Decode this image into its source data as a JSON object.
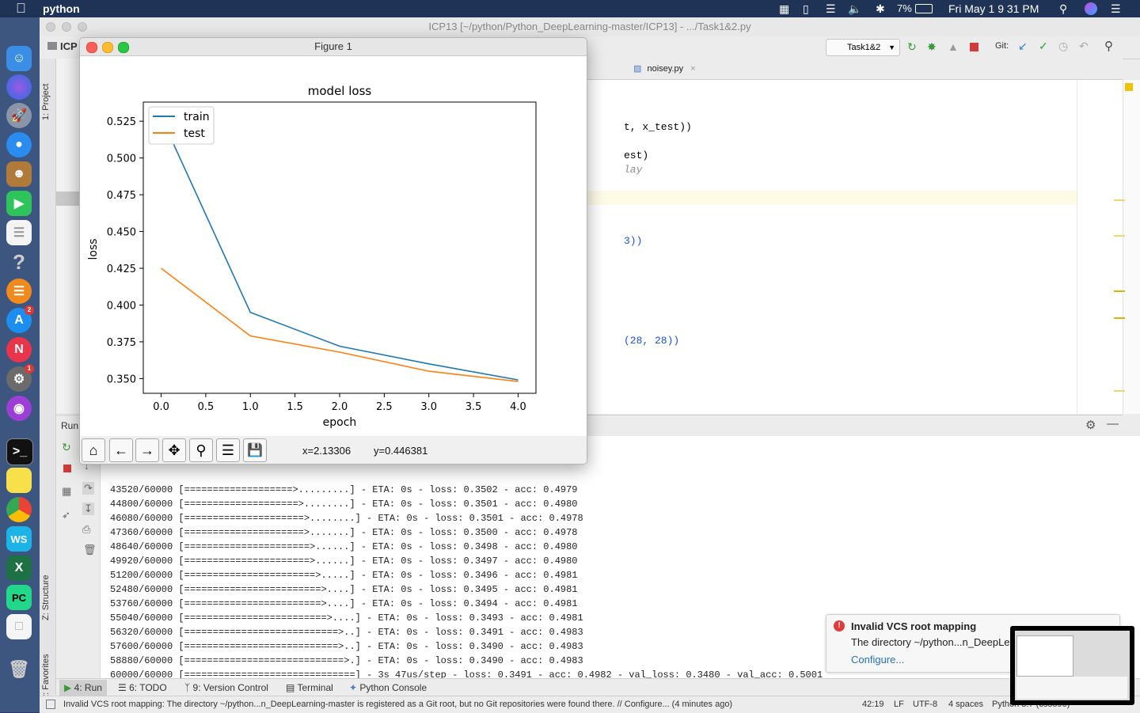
{
  "menubar": {
    "app_name": "python",
    "battery": "7%",
    "datetime": "Fri May 1  9 31 PM"
  },
  "dock": {
    "badges": {
      "appstore": "2",
      "prefs": "1"
    }
  },
  "ide": {
    "window_title": "ICP13 [~/python/Python_DeepLearning-master/ICP13] - .../Task1&2.py",
    "project_label": "ICP",
    "run_config": "Task1&2",
    "git_label": "Git:",
    "tab_label": "noisey.py",
    "side_project": "1: Project",
    "side_structure": "Z: Structure",
    "side_favorites": "2: Favorites",
    "run_label": "Run",
    "code_lines": [
      {
        "text": "t, x_test))"
      },
      {
        "text": "est)"
      },
      {
        "text": "lay"
      },
      {
        "text": "3))"
      },
      {
        "text": "(28, 28))"
      }
    ]
  },
  "figure": {
    "window_title": "Figure 1",
    "coords_x": "x=2.13306",
    "coords_y": "y=0.446381"
  },
  "chart_data": {
    "type": "line",
    "title": "model loss",
    "xlabel": "epoch",
    "ylabel": "loss",
    "x": [
      0,
      1,
      2,
      3,
      4
    ],
    "xlim": [
      -0.2,
      4.2
    ],
    "ylim": [
      0.34,
      0.538
    ],
    "xticks": [
      "0.0",
      "0.5",
      "1.0",
      "1.5",
      "2.0",
      "2.5",
      "3.0",
      "3.5",
      "4.0"
    ],
    "yticks": [
      "0.350",
      "0.375",
      "0.400",
      "0.425",
      "0.450",
      "0.475",
      "0.500",
      "0.525"
    ],
    "legend_position": "top-left",
    "series": [
      {
        "name": "train",
        "color": "#1f77b4",
        "values": [
          0.528,
          0.395,
          0.372,
          0.36,
          0.3491
        ]
      },
      {
        "name": "test",
        "color": "#ff7f0e",
        "values": [
          0.425,
          0.379,
          0.368,
          0.355,
          0.348
        ]
      }
    ]
  },
  "console": {
    "lines": [
      "43520/60000 [===================>.........] - ETA: 0s - loss: 0.3502 - acc: 0.4979",
      "44800/60000 [====================>........] - ETA: 0s - loss: 0.3501 - acc: 0.4980",
      "46080/60000 [=====================>........] - ETA: 0s - loss: 0.3501 - acc: 0.4978",
      "47360/60000 [=====================>.......] - ETA: 0s - loss: 0.3500 - acc: 0.4978",
      "48640/60000 [======================>......] - ETA: 0s - loss: 0.3498 - acc: 0.4980",
      "49920/60000 [======================>......] - ETA: 0s - loss: 0.3497 - acc: 0.4980",
      "51200/60000 [=======================>.....] - ETA: 0s - loss: 0.3496 - acc: 0.4981",
      "52480/60000 [========================>....] - ETA: 0s - loss: 0.3495 - acc: 0.4981",
      "53760/60000 [========================>....] - ETA: 0s - loss: 0.3494 - acc: 0.4981",
      "55040/60000 [=========================>....] - ETA: 0s - loss: 0.3493 - acc: 0.4981",
      "56320/60000 [===========================>..] - ETA: 0s - loss: 0.3491 - acc: 0.4983",
      "57600/60000 [===========================>..] - ETA: 0s - loss: 0.3490 - acc: 0.4983",
      "58880/60000 [============================>.] - ETA: 0s - loss: 0.3490 - acc: 0.4983",
      "60000/60000 [==============================] - 3s 47us/step - loss: 0.3491 - acc: 0.4982 - val_loss: 0.3480 - val_acc: 0.5001"
    ]
  },
  "bottom_tabs": {
    "run": "4: Run",
    "todo": "6: TODO",
    "vcs": "9: Version Control",
    "terminal": "Terminal",
    "python_console": "Python Console"
  },
  "notification": {
    "title": "Invalid VCS root mapping",
    "body": "The directory ~/python...n_DeepLe",
    "link": "Configure..."
  },
  "statusbar": {
    "message": "Invalid VCS root mapping: The directory ~/python...n_DeepLearning-master is registered as a Git root, but no Git repositories were found there. // Configure... (4 minutes ago)",
    "position": "42:19",
    "line_sep": "LF",
    "encoding": "UTF-8",
    "indent": "4 spaces",
    "interpreter": "Python 3.7 (cs5590)"
  }
}
